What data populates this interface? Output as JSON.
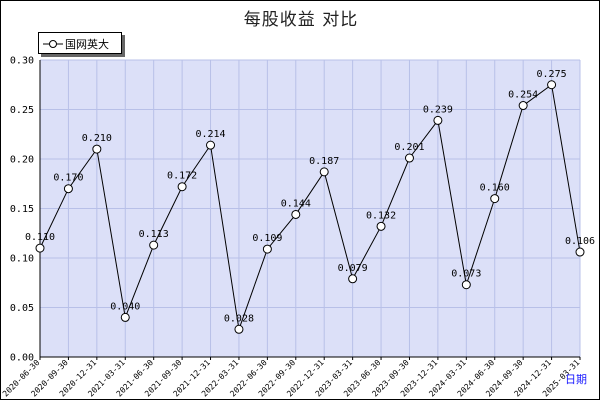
{
  "chart_data": {
    "type": "line",
    "title": "每股收益  对比",
    "xlabel": "日期",
    "ylabel": "",
    "ylim": [
      0,
      0.3
    ],
    "y_ticks": [
      "0.00",
      "0.05",
      "0.10",
      "0.15",
      "0.20",
      "0.25",
      "0.30"
    ],
    "grid": true,
    "legend_position": "top-left",
    "categories": [
      "2020-06-30",
      "2020-09-30",
      "2020-12-31",
      "2021-03-31",
      "2021-06-30",
      "2021-09-30",
      "2021-12-31",
      "2022-03-31",
      "2022-06-30",
      "2022-09-30",
      "2022-12-31",
      "2023-03-31",
      "2023-06-30",
      "2023-09-30",
      "2023-12-31",
      "2024-03-31",
      "2024-06-30",
      "2024-09-30",
      "2024-12-31",
      "2025-03-31"
    ],
    "series": [
      {
        "name": "国网英大",
        "values": [
          0.11,
          0.17,
          0.21,
          0.04,
          0.113,
          0.172,
          0.214,
          0.028,
          0.109,
          0.144,
          0.187,
          0.079,
          0.132,
          0.201,
          0.239,
          0.073,
          0.16,
          0.254,
          0.275,
          0.106
        ],
        "labels": [
          "0.110",
          "0.170",
          "0.210",
          "0.040",
          "0.113",
          "0.172",
          "0.214",
          "0.028",
          "0.109",
          "0.144",
          "0.187",
          "0.079",
          "0.132",
          "0.201",
          "0.239",
          "0.073",
          "0.160",
          "0.254",
          "0.275",
          "0.106"
        ]
      }
    ],
    "colors": {
      "plot_background": "#dce0f8",
      "grid": "#b8c0e8",
      "line": "#000000",
      "marker_fill": "#ffffff"
    }
  }
}
